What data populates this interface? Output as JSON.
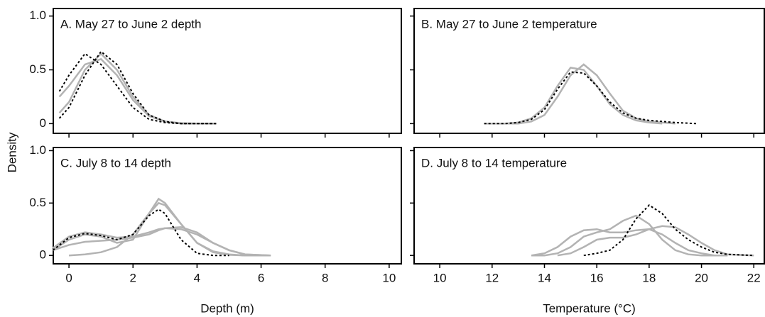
{
  "chart_data": [
    {
      "type": "line",
      "title": "A. May 27 to June 2 depth",
      "ylabel": "Density",
      "xlim": [
        -0.49,
        10.38
      ],
      "xticks": [
        0,
        2,
        4,
        6,
        8,
        10
      ],
      "ylim": [
        -0.09,
        1.07
      ],
      "yticks": [
        0,
        0.5,
        {
          "value": 1,
          "label": "1.0"
        }
      ],
      "series": [
        {
          "color": "#b3b3b3",
          "style": "solid",
          "x": [
            -0.3,
            0,
            0.5,
            1,
            1.5,
            2,
            2.5,
            3,
            3.5,
            4,
            4.6
          ],
          "values": [
            0.25,
            0.35,
            0.55,
            0.6,
            0.45,
            0.22,
            0.07,
            0.02,
            0.005,
            0,
            0
          ]
        },
        {
          "color": "#b3b3b3",
          "style": "solid",
          "x": [
            -0.3,
            0,
            0.5,
            1,
            1.5,
            2,
            2.5,
            3,
            3.5,
            4,
            4.6
          ],
          "values": [
            0.1,
            0.2,
            0.5,
            0.65,
            0.5,
            0.25,
            0.08,
            0.02,
            0,
            0,
            0
          ]
        },
        {
          "color": "#000000",
          "style": "dotted",
          "x": [
            -0.3,
            0,
            0.5,
            1,
            1.5,
            2,
            2.5,
            3,
            3.5,
            4,
            4.6
          ],
          "values": [
            0.05,
            0.15,
            0.45,
            0.67,
            0.55,
            0.28,
            0.08,
            0.02,
            0,
            0,
            0
          ]
        },
        {
          "color": "#000000",
          "style": "dotted",
          "x": [
            -0.3,
            0,
            0.5,
            1,
            1.5,
            2,
            2.5,
            3,
            3.5,
            4,
            4.6
          ],
          "values": [
            0.3,
            0.45,
            0.65,
            0.55,
            0.35,
            0.15,
            0.04,
            0.01,
            0,
            0,
            0
          ]
        }
      ]
    },
    {
      "type": "line",
      "title": "B. May 27 to June 2 temperature",
      "xlim": [
        9.02,
        22.4
      ],
      "xticks": [
        10,
        12,
        14,
        16,
        18,
        20,
        22
      ],
      "ylim": [
        -0.09,
        1.07
      ],
      "yticks": [
        0,
        0.5,
        1
      ],
      "series": [
        {
          "color": "#b3b3b3",
          "style": "solid",
          "x": [
            11.7,
            12.5,
            13,
            13.5,
            14,
            14.5,
            15,
            15.5,
            16,
            16.5,
            17,
            17.5,
            18,
            18.5,
            19,
            19.8
          ],
          "values": [
            0,
            0,
            0.01,
            0.05,
            0.15,
            0.35,
            0.52,
            0.5,
            0.35,
            0.18,
            0.08,
            0.03,
            0.01,
            0,
            null,
            null
          ]
        },
        {
          "color": "#b3b3b3",
          "style": "solid",
          "x": [
            11.7,
            12.5,
            13,
            13.5,
            14,
            14.5,
            15,
            15.5,
            16,
            16.5,
            17,
            17.5,
            18,
            18.5,
            19,
            19.8
          ],
          "values": [
            0,
            0,
            0,
            0.02,
            0.08,
            0.25,
            0.45,
            0.55,
            0.45,
            0.28,
            0.12,
            0.05,
            0.02,
            0.01,
            0,
            null
          ]
        },
        {
          "color": "#000000",
          "style": "dotted",
          "x": [
            11.7,
            12.5,
            13,
            13.5,
            14,
            14.5,
            15,
            15.5,
            16,
            16.5,
            17,
            17.5,
            18,
            18.5,
            19,
            19.8
          ],
          "values": [
            0,
            0,
            0.01,
            0.04,
            0.13,
            0.32,
            0.48,
            0.47,
            0.35,
            0.2,
            0.1,
            0.05,
            0.03,
            0.02,
            0.01,
            0
          ]
        }
      ]
    },
    {
      "type": "line",
      "title": "C. July 8 to 14 depth",
      "xlabel": "Depth (m)",
      "xlim": [
        -0.49,
        10.38
      ],
      "xticks": [
        0,
        2,
        4,
        6,
        8,
        10
      ],
      "ylim": [
        -0.08,
        1.03
      ],
      "yticks": [
        0,
        0.5,
        {
          "value": 1,
          "label": "1.0"
        }
      ],
      "series": [
        {
          "color": "#b3b3b3",
          "style": "solid",
          "x": [
            -0.5,
            0,
            0.5,
            1,
            1.5,
            2,
            2.5,
            2.8,
            3,
            3.5,
            4,
            4.5,
            5,
            5.5,
            6.3
          ],
          "values": [
            0.05,
            0.15,
            0.2,
            0.18,
            0.12,
            0.15,
            0.4,
            0.54,
            0.5,
            0.3,
            0.12,
            0.04,
            0.01,
            0,
            0
          ]
        },
        {
          "color": "#b3b3b3",
          "style": "solid",
          "x": [
            -0.5,
            0,
            0.5,
            1,
            1.5,
            2,
            2.5,
            2.8,
            3,
            3.5,
            4,
            4.5,
            5,
            5.5,
            6.3
          ],
          "values": [
            0.07,
            0.18,
            0.22,
            0.2,
            0.17,
            0.18,
            0.22,
            0.25,
            0.26,
            0.25,
            0.2,
            0.12,
            0.05,
            0.01,
            0
          ]
        },
        {
          "color": "#b3b3b3",
          "style": "solid",
          "x": [
            -0.5,
            0,
            0.5,
            1,
            1.5,
            2,
            2.5,
            2.8,
            3,
            3.5,
            4,
            4.5,
            5,
            5.5,
            6.3
          ],
          "values": [
            0.05,
            0.1,
            0.13,
            0.14,
            0.15,
            0.17,
            0.2,
            0.24,
            0.26,
            0.27,
            0.22,
            0.12,
            0.05,
            0.01,
            0
          ]
        },
        {
          "color": "#b3b3b3",
          "style": "solid",
          "x": [
            -0.5,
            0,
            0.5,
            1,
            1.5,
            2,
            2.5,
            2.8,
            3,
            3.5,
            4,
            4.5,
            5,
            5.5,
            6.3
          ],
          "values": [
            null,
            0,
            0.01,
            0.03,
            0.08,
            0.2,
            0.4,
            0.5,
            0.48,
            0.3,
            0.12,
            0.03,
            0.005,
            0,
            0
          ]
        },
        {
          "color": "#000000",
          "style": "dotted",
          "x": [
            -0.5,
            0,
            0.5,
            1,
            1.5,
            2,
            2.5,
            2.8,
            3,
            3.5,
            4,
            4.5,
            5,
            5.5,
            6.3
          ],
          "values": [
            0.05,
            0.17,
            0.21,
            0.19,
            0.15,
            0.2,
            0.38,
            0.44,
            0.4,
            0.15,
            0.02,
            0,
            0,
            null,
            null
          ]
        }
      ]
    },
    {
      "type": "line",
      "title": "D. July 8 to 14 temperature",
      "xlabel": "Temperature (°C)",
      "xlim": [
        9.02,
        22.4
      ],
      "xticks": [
        10,
        12,
        14,
        16,
        18,
        20,
        22
      ],
      "ylim": [
        -0.08,
        1.03
      ],
      "yticks": [
        0,
        0.5,
        1
      ],
      "series": [
        {
          "color": "#b3b3b3",
          "style": "solid",
          "x": [
            13.5,
            14,
            14.5,
            15,
            15.5,
            16,
            16.5,
            17,
            17.5,
            18,
            18.5,
            19,
            19.5,
            20,
            20.5,
            21,
            22
          ],
          "values": [
            0,
            0.02,
            0.08,
            0.18,
            0.24,
            0.25,
            0.22,
            0.22,
            0.24,
            0.25,
            0.2,
            0.12,
            0.05,
            0.02,
            0,
            0,
            null
          ]
        },
        {
          "color": "#b3b3b3",
          "style": "solid",
          "x": [
            13.5,
            14,
            14.5,
            15,
            15.5,
            16,
            16.5,
            17,
            17.5,
            18,
            18.5,
            19,
            19.5,
            20,
            20.5,
            21,
            22
          ],
          "values": [
            0,
            0,
            0.02,
            0.08,
            0.18,
            0.22,
            0.25,
            0.33,
            0.38,
            0.3,
            0.15,
            0.05,
            0.01,
            0,
            0,
            null,
            null
          ]
        },
        {
          "color": "#b3b3b3",
          "style": "solid",
          "x": [
            13.5,
            14,
            14.5,
            15,
            15.5,
            16,
            16.5,
            17,
            17.5,
            18,
            18.5,
            19,
            19.5,
            20,
            20.5,
            21,
            22
          ],
          "values": [
            null,
            null,
            0,
            0.02,
            0.08,
            0.15,
            0.17,
            0.17,
            0.2,
            0.25,
            0.28,
            0.27,
            0.2,
            0.12,
            0.05,
            0.01,
            0
          ]
        },
        {
          "color": "#000000",
          "style": "dotted",
          "x": [
            13.5,
            14,
            14.5,
            15,
            15.5,
            16,
            16.5,
            17,
            17.5,
            18,
            18.5,
            19,
            19.5,
            20,
            20.5,
            21,
            22
          ],
          "values": [
            null,
            null,
            null,
            null,
            0,
            0.02,
            0.05,
            0.15,
            0.35,
            0.48,
            0.4,
            0.25,
            0.15,
            0.08,
            0.03,
            0.01,
            0
          ]
        }
      ]
    }
  ]
}
